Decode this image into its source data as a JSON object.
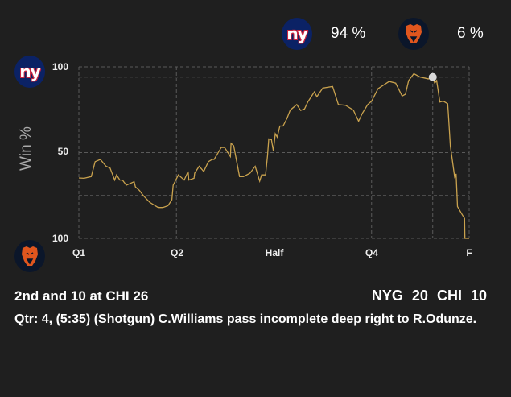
{
  "header": {
    "home_team": {
      "abbr": "NYG",
      "logo": "giants-logo",
      "win_pct": "94 %"
    },
    "away_team": {
      "abbr": "CHI",
      "logo": "bears-logo",
      "win_pct": "6 %"
    }
  },
  "play": {
    "down_distance": "2nd and 10 at CHI 26",
    "score": {
      "team1": "NYG",
      "score1": "20",
      "team2": "CHI",
      "score2": "10"
    },
    "description": "Qtr: 4, (5:35) (Shotgun) C.Williams pass incomplete deep right to R.Odunze."
  },
  "colors": {
    "line": "#c9a24e",
    "grid": "#5a5a5a",
    "background": "#1f1f1f",
    "marker": "#d8d8d8"
  },
  "chart_data": {
    "type": "line",
    "title": "",
    "ylabel": "Win %",
    "xlabel": "",
    "x_unit": "game minutes elapsed",
    "xlim": [
      0,
      60
    ],
    "ylim": [
      0,
      100
    ],
    "y_tick_labels": [
      "100",
      "50",
      "100"
    ],
    "y_tick_values": [
      100,
      50,
      0
    ],
    "x_tick_labels": [
      "Q1",
      "Q2",
      "Half",
      "Q4",
      "F"
    ],
    "x_tick_values": [
      0,
      15,
      30,
      45,
      60
    ],
    "grid": true,
    "current_marker": {
      "x": 54.4,
      "y": 94
    },
    "series": [
      {
        "name": "NYG win probability",
        "points": [
          [
            0,
            35.2
          ],
          [
            0.8,
            35
          ],
          [
            1.9,
            36
          ],
          [
            2.5,
            44.7
          ],
          [
            3.3,
            46
          ],
          [
            4.2,
            42
          ],
          [
            4.8,
            41
          ],
          [
            5.5,
            34
          ],
          [
            5.8,
            37
          ],
          [
            6.3,
            34
          ],
          [
            6.7,
            34
          ],
          [
            7.3,
            31
          ],
          [
            8.5,
            33
          ],
          [
            8.7,
            30
          ],
          [
            9.3,
            28
          ],
          [
            9.9,
            25
          ],
          [
            10.9,
            21
          ],
          [
            12.2,
            18
          ],
          [
            12.9,
            18
          ],
          [
            13.7,
            19
          ],
          [
            14.3,
            22.5
          ],
          [
            14.5,
            31
          ],
          [
            15.3,
            37
          ],
          [
            16.2,
            34
          ],
          [
            16.8,
            39
          ],
          [
            16.9,
            34
          ],
          [
            17.7,
            35
          ],
          [
            17.8,
            38
          ],
          [
            18.5,
            42
          ],
          [
            19.2,
            39
          ],
          [
            19.9,
            44.7
          ],
          [
            20.5,
            46
          ],
          [
            20.8,
            46
          ],
          [
            21.9,
            53
          ],
          [
            22.4,
            53
          ],
          [
            23.3,
            47.7
          ],
          [
            23.4,
            55.4
          ],
          [
            23.8,
            54
          ],
          [
            24.7,
            36
          ],
          [
            25.3,
            36
          ],
          [
            26.3,
            38
          ],
          [
            27.1,
            42
          ],
          [
            27.8,
            33.4
          ],
          [
            28.1,
            37
          ],
          [
            28.7,
            37
          ],
          [
            29,
            48
          ],
          [
            29.2,
            58
          ],
          [
            29.6,
            57.5
          ],
          [
            29.9,
            51
          ],
          [
            30.2,
            61
          ],
          [
            30.5,
            59
          ],
          [
            30.9,
            65.5
          ],
          [
            31.4,
            65.5
          ],
          [
            32,
            70
          ],
          [
            32.5,
            74.8
          ],
          [
            33.5,
            78
          ],
          [
            34.1,
            74.6
          ],
          [
            34.7,
            75.5
          ],
          [
            35.2,
            79.5
          ],
          [
            36.2,
            85.4
          ],
          [
            36.6,
            82.6
          ],
          [
            37.5,
            87.6
          ],
          [
            39,
            88.6
          ],
          [
            39.9,
            78
          ],
          [
            41,
            77.6
          ],
          [
            42.2,
            74.8
          ],
          [
            43,
            68.3
          ],
          [
            43.6,
            73
          ],
          [
            44.4,
            78
          ],
          [
            45,
            80
          ],
          [
            46,
            87.3
          ],
          [
            47.7,
            91.5
          ],
          [
            48.7,
            90.5
          ],
          [
            49.7,
            83
          ],
          [
            50.2,
            84
          ],
          [
            50.7,
            92
          ],
          [
            51.5,
            96
          ],
          [
            52.5,
            94
          ],
          [
            53.7,
            93
          ],
          [
            54.4,
            93.5
          ],
          [
            54.7,
            90.5
          ],
          [
            55,
            92
          ],
          [
            55.5,
            79.5
          ],
          [
            56,
            80
          ],
          [
            56.7,
            78.5
          ],
          [
            56.8,
            73
          ],
          [
            57.1,
            54
          ],
          [
            57.8,
            35
          ],
          [
            58,
            37.6
          ],
          [
            58.2,
            18.6
          ],
          [
            58.9,
            14
          ],
          [
            59.3,
            11.6
          ],
          [
            59.35,
            0
          ],
          [
            60,
            0
          ]
        ]
      }
    ]
  }
}
